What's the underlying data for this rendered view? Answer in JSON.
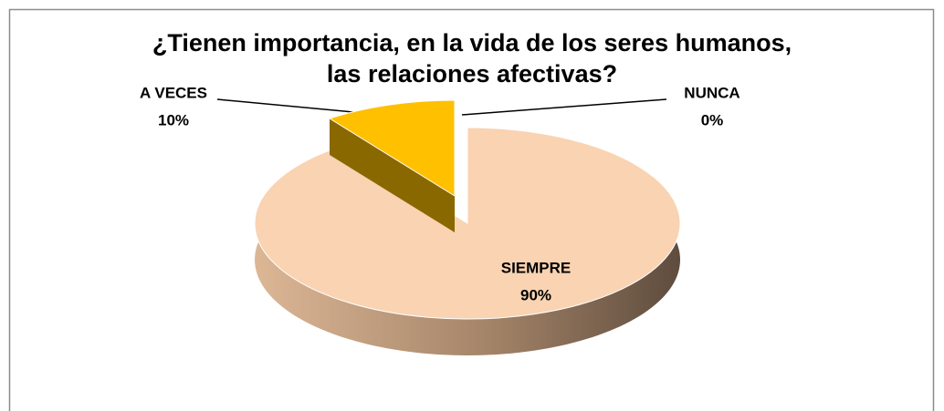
{
  "chart_data": {
    "type": "pie",
    "title": "¿Tienen importancia, en la vida de los seres humanos, las relaciones afectivas?",
    "categories": [
      "SIEMPRE",
      "A VECES",
      "NUNCA"
    ],
    "values": [
      90,
      10,
      0
    ],
    "value_labels": [
      "90%",
      "10%",
      "0%"
    ],
    "colors": [
      "#F9D3B2",
      "#FFC000",
      "#4F81BD"
    ]
  }
}
